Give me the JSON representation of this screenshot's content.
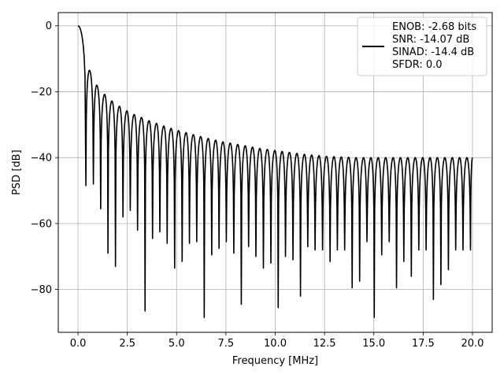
{
  "chart_data": {
    "type": "line",
    "title": "",
    "xlabel": "Frequency [MHz]",
    "ylabel": "PSD [dB]",
    "xlim": [
      -1.0,
      21.0
    ],
    "ylim": [
      -93.0,
      4.0
    ],
    "x_ticks": [
      0.0,
      2.5,
      5.0,
      7.5,
      10.0,
      12.5,
      15.0,
      17.5,
      20.0
    ],
    "x_tick_labels": [
      "0.0",
      "2.5",
      "5.0",
      "7.5",
      "10.0",
      "12.5",
      "15.0",
      "17.5",
      "20.0"
    ],
    "y_ticks": [
      0,
      -20,
      -40,
      -60,
      -80
    ],
    "y_tick_labels": [
      "0",
      "−20",
      "−40",
      "−60",
      "−80"
    ],
    "grid": true,
    "legend_position": "top-right",
    "line_color": "#000000",
    "grid_color": "#b0b0b0",
    "legend_lines": [
      "ENOB: -2.68 bits",
      "SNR: -14.07 dB",
      "SINAD: -14.4 dB",
      "SFDR: 0.0"
    ],
    "series": [
      {
        "x_start": 0.0,
        "x_end": 20.0,
        "peaks_x": [
          0.0,
          0.58,
          0.95,
          1.35,
          1.72,
          2.1,
          2.48,
          2.85,
          3.22,
          3.6,
          3.98,
          4.35,
          4.72,
          5.1,
          5.48,
          5.85,
          6.22,
          6.6,
          6.98,
          7.35,
          7.72,
          8.1,
          8.48,
          8.85,
          9.22,
          9.6,
          9.98,
          10.35,
          10.72,
          11.1,
          11.48,
          11.85,
          12.22,
          12.6,
          12.98,
          13.35,
          13.72,
          14.1,
          14.48,
          14.85,
          15.22,
          15.6,
          15.98,
          16.35,
          16.72,
          17.1,
          17.48,
          17.85,
          18.22,
          18.6,
          18.98,
          19.35,
          19.72
        ],
        "peaks_db": [
          0.0,
          -13.5,
          -18.0,
          -20.8,
          -22.8,
          -24.4,
          -25.8,
          -26.9,
          -27.8,
          -28.8,
          -29.6,
          -30.4,
          -31.1,
          -31.8,
          -32.4,
          -33.0,
          -33.6,
          -34.2,
          -34.7,
          -35.2,
          -35.6,
          -36.0,
          -36.4,
          -36.8,
          -37.2,
          -37.5,
          -37.8,
          -38.1,
          -38.4,
          -38.7,
          -39.0,
          -39.2,
          -39.4,
          -39.6,
          -39.7,
          -39.8,
          -39.9,
          -40.0,
          -40.0,
          -40.0,
          -40.0,
          -40.0,
          -40.0,
          -40.0,
          -40.0,
          -40.0,
          -40.0,
          -40.0,
          -40.0,
          -40.0,
          -40.0,
          -40.0,
          -40.0
        ],
        "nulls_x": [
          0.4,
          0.78,
          1.15,
          1.52,
          1.9,
          2.28,
          2.65,
          3.02,
          3.4,
          3.78,
          4.15,
          4.52,
          4.9,
          5.28,
          5.65,
          6.02,
          6.4,
          6.78,
          7.15,
          7.52,
          7.9,
          8.28,
          8.65,
          9.02,
          9.4,
          9.78,
          10.15,
          10.52,
          10.9,
          11.28,
          11.65,
          12.02,
          12.4,
          12.78,
          13.15,
          13.52,
          13.9,
          14.28,
          14.65,
          15.02,
          15.4,
          15.78,
          16.15,
          16.52,
          16.9,
          17.28,
          17.65,
          18.02,
          18.4,
          18.78,
          19.15,
          19.52,
          19.9
        ],
        "nulls_db": [
          -48.5,
          -48.0,
          -55.5,
          -69.0,
          -73.0,
          -58.0,
          -56.0,
          -62.0,
          -86.5,
          -64.5,
          -62.5,
          -66.0,
          -73.5,
          -71.5,
          -66.0,
          -65.5,
          -88.5,
          -69.5,
          -67.5,
          -65.5,
          -69.0,
          -84.5,
          -67.0,
          -70.0,
          -73.5,
          -72.0,
          -85.5,
          -70.0,
          -71.0,
          -82.0,
          -67.0,
          -68.0,
          -68.0,
          -71.5,
          -68.0,
          -68.0,
          -79.5,
          -77.5,
          -65.5,
          -88.5,
          -69.5,
          -65.5,
          -79.5,
          -71.5,
          -76.0,
          -68.0,
          -68.0,
          -83.0,
          -78.5,
          -74.0,
          -68.0,
          -68.0,
          -68.0
        ],
        "end_value_db": -40.0
      }
    ]
  }
}
